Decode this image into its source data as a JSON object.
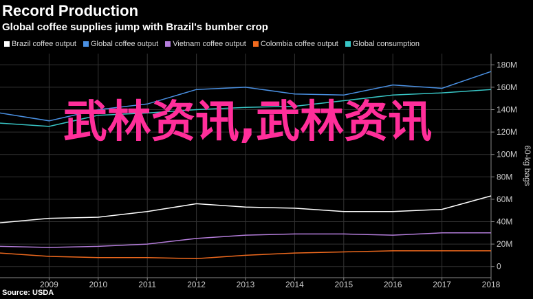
{
  "header": {
    "title": "Record Production",
    "subtitle": "Global coffee supplies jump with Brazil's bumber crop"
  },
  "source": "Source: USDA",
  "watermark": "武林资讯,武林资讯",
  "colors": {
    "background": "#000000",
    "grid": "#333333",
    "axis": "#888888"
  },
  "chart_data": {
    "type": "line",
    "title": "Record Production",
    "subtitle": "Global coffee supplies jump with Brazil's bumber crop",
    "xlabel": "",
    "ylabel": "60-kg bags",
    "x": [
      2008,
      2009,
      2010,
      2011,
      2012,
      2013,
      2014,
      2015,
      2016,
      2017,
      2018
    ],
    "xticks": [
      2009,
      2010,
      2011,
      2012,
      2013,
      2014,
      2015,
      2016,
      2017,
      2018
    ],
    "xlim": [
      2008,
      2018
    ],
    "ylim": [
      -10,
      190
    ],
    "yticks": [
      0,
      20,
      40,
      60,
      80,
      100,
      120,
      140,
      160,
      180
    ],
    "ytick_labels": [
      "0",
      "20M",
      "40M",
      "60M",
      "80M",
      "100M",
      "120M",
      "140M",
      "160M",
      "180M"
    ],
    "y_axis_side": "right",
    "grid": true,
    "legend_position": "top",
    "series": [
      {
        "name": "Brazil coffee output",
        "color": "#ffffff",
        "values": [
          39,
          43,
          44,
          49,
          56,
          53,
          52,
          49,
          49,
          51,
          63
        ]
      },
      {
        "name": "Global coffee output",
        "color": "#4a90e2",
        "values": [
          137,
          130,
          140,
          145,
          158,
          160,
          154,
          153,
          162,
          159,
          174
        ]
      },
      {
        "name": "Vietnam coffee output",
        "color": "#b57edc",
        "values": [
          18,
          17,
          18,
          20,
          25,
          28,
          29,
          29,
          28,
          30,
          30
        ]
      },
      {
        "name": "Colombia coffee output",
        "color": "#f06a1e",
        "values": [
          12,
          9,
          8,
          8,
          7,
          10,
          12,
          13,
          14,
          14,
          14
        ]
      },
      {
        "name": "Global consumption",
        "color": "#38c6c6",
        "values": [
          128,
          125,
          135,
          137,
          140,
          142,
          143,
          148,
          153,
          155,
          158
        ]
      }
    ]
  }
}
